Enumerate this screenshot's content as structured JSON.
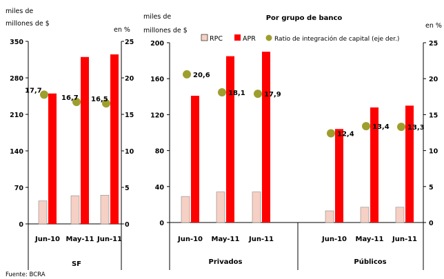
{
  "colors": {
    "rpc": "#f6d0c4",
    "apr": "#ff0000",
    "ratio": "#9e9e2e",
    "axis": "#000000"
  },
  "left_panel": {
    "unit_label_line1": "miles de",
    "unit_label_line2": "millones de $",
    "right_unit": "en %",
    "group_label": "SF"
  },
  "right_panel": {
    "title": "Por grupo de banco",
    "unit_label_line1": "miles de",
    "unit_label_line2": "millones de $",
    "right_unit": "en %",
    "groups": [
      "Privados",
      "Públicos"
    ]
  },
  "legend": {
    "rpc": "RPC",
    "apr": "APR",
    "ratio": "Ratio de integración de capital (eje der.)"
  },
  "source": "Fuente: BCRA",
  "chart_data": [
    {
      "type": "bar",
      "title": "",
      "group": "SF",
      "categories": [
        "Jun-10",
        "May-11",
        "Jun-11"
      ],
      "ylim_left": [
        0,
        350
      ],
      "yticks_left": [
        0,
        70,
        140,
        210,
        280,
        350
      ],
      "ylim_right": [
        0,
        25
      ],
      "yticks_right": [
        0,
        5,
        10,
        15,
        20,
        25
      ],
      "series": [
        {
          "name": "RPC",
          "axis": "left",
          "values": [
            44,
            54,
            55
          ]
        },
        {
          "name": "APR",
          "axis": "left",
          "values": [
            250,
            320,
            325
          ]
        },
        {
          "name": "Ratio de integración de capital (eje der.)",
          "axis": "right",
          "type": "scatter",
          "values": [
            17.7,
            16.7,
            16.5
          ],
          "labels": [
            "17,7",
            "16,7",
            "16,5"
          ]
        }
      ]
    },
    {
      "type": "bar",
      "title": "Por grupo de banco",
      "categories": [
        "Jun-10",
        "May-11",
        "Jun-11",
        "Jun-10",
        "May-11",
        "Jun-11"
      ],
      "groups": [
        {
          "name": "Privados",
          "categories": [
            "Jun-10",
            "May-11",
            "Jun-11"
          ]
        },
        {
          "name": "Públicos",
          "categories": [
            "Jun-10",
            "May-11",
            "Jun-11"
          ]
        }
      ],
      "ylim_left": [
        0,
        200
      ],
      "yticks_left": [
        0,
        40,
        80,
        120,
        160,
        200
      ],
      "ylim_right": [
        0,
        25
      ],
      "yticks_right": [
        0,
        5,
        10,
        15,
        20,
        25
      ],
      "series": [
        {
          "name": "RPC",
          "axis": "left",
          "values": [
            29,
            34,
            34,
            13,
            17,
            17
          ]
        },
        {
          "name": "APR",
          "axis": "left",
          "values": [
            141,
            185,
            190,
            104,
            128,
            130
          ]
        },
        {
          "name": "Ratio de integración de capital (eje der.)",
          "axis": "right",
          "type": "scatter",
          "values": [
            20.6,
            18.1,
            17.9,
            12.4,
            13.4,
            13.3
          ],
          "labels": [
            "20,6",
            "18,1",
            "17,9",
            "12,4",
            "13,4",
            "13,3"
          ]
        }
      ]
    }
  ]
}
